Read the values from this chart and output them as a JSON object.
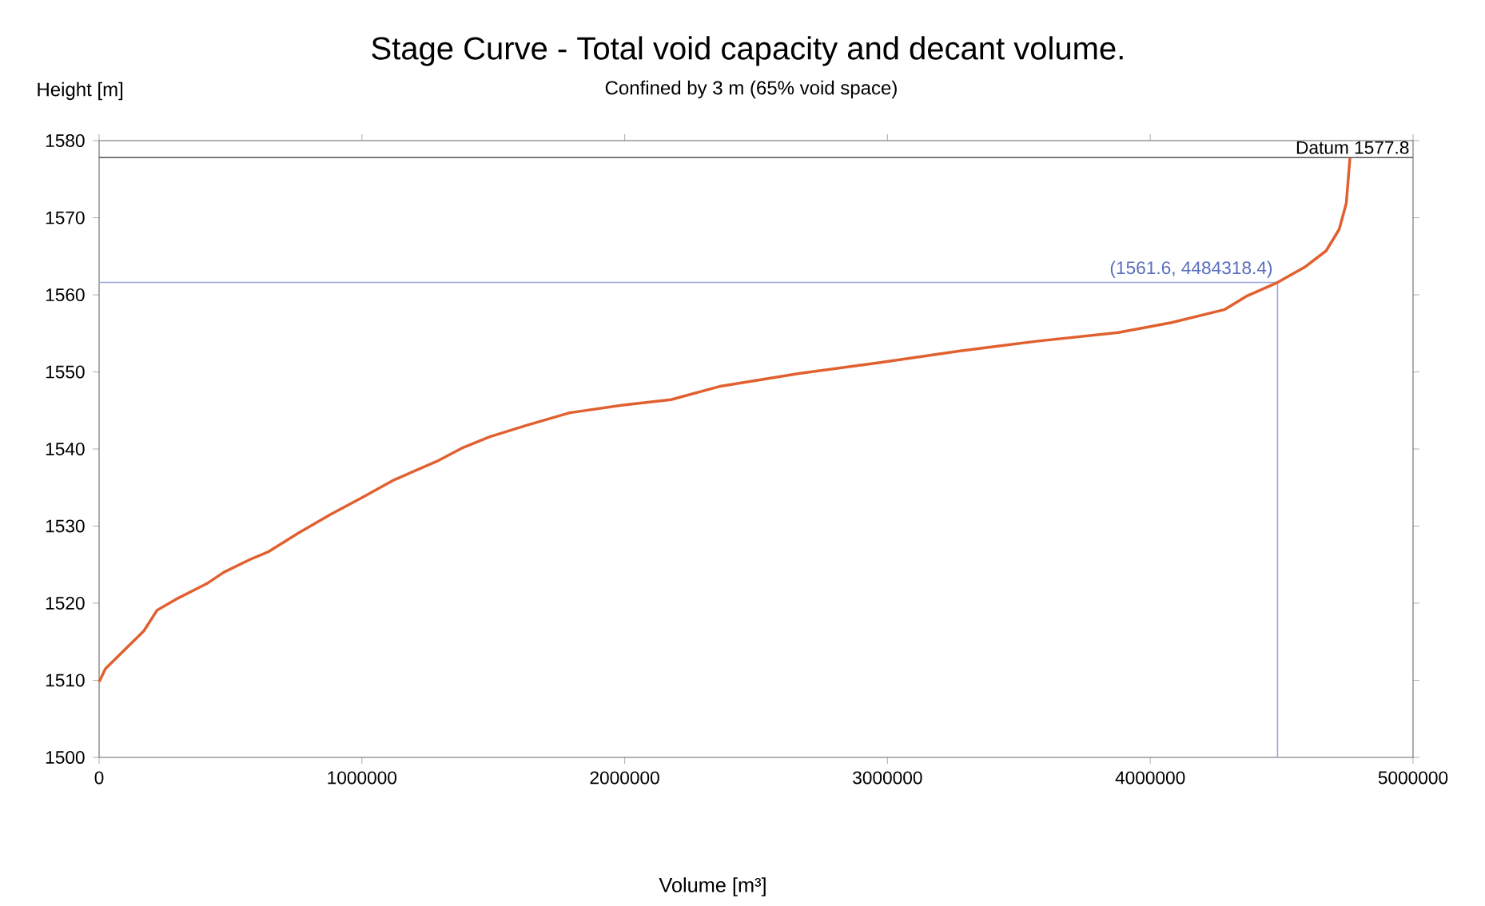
{
  "chart_data": {
    "type": "line",
    "title": "Stage Curve - Total void capacity and decant volume.",
    "subtitle": "Confined by 3 m (65% void space)",
    "xlabel": "Volume [m³]",
    "ylabel": "Height [m]",
    "series": [
      {
        "color": "#9ca8d8",
        "x": [
          0,
          4484318.4,
          4484318.4
        ],
        "values": [
          1561.6,
          1561.6,
          1500
        ]
      },
      {
        "color": "#e0602f",
        "x": [
          0,
          24000,
          170000,
          221000,
          292000,
          413000,
          474000,
          576000,
          646000,
          758000,
          880000,
          1001000,
          1123000,
          1285000,
          1386000,
          1487000,
          1629000,
          1791000,
          1994000,
          2176000,
          2359000,
          2663000,
          2967000,
          3271000,
          3574000,
          3878000,
          4081000,
          4284000,
          4365000,
          4484318.4,
          4588000,
          4669000,
          4719000,
          4746000,
          4760000
        ],
        "values": [
          1509.8,
          1511.5,
          1516.4,
          1519.1,
          1520.5,
          1522.6,
          1524,
          1525.7,
          1526.7,
          1529.1,
          1531.5,
          1533.7,
          1536,
          1538.4,
          1540.2,
          1541.6,
          1543.1,
          1544.7,
          1545.7,
          1546.4,
          1548.1,
          1549.8,
          1551.2,
          1552.7,
          1554,
          1555.1,
          1556.4,
          1558.1,
          1559.8,
          1561.6,
          1563.6,
          1565.7,
          1568.5,
          1571.9,
          1577.8
        ]
      }
    ],
    "xlim": [
      0,
      5000000
    ],
    "ylim": [
      1500,
      1580
    ],
    "xticks": [
      0,
      1000000,
      2000000,
      3000000,
      4000000,
      5000000
    ],
    "yticks": [
      1500,
      1510,
      1520,
      1530,
      1540,
      1550,
      1560,
      1570,
      1580
    ],
    "ref_lines": [
      {
        "axis": "y",
        "value": 1577.8,
        "label": "Datum 1577.8",
        "color": "#555555"
      }
    ],
    "annotations": [
      {
        "text": "(1561.6, 4484318.4)",
        "x": 4484318.4,
        "y": 1561.6
      }
    ]
  }
}
